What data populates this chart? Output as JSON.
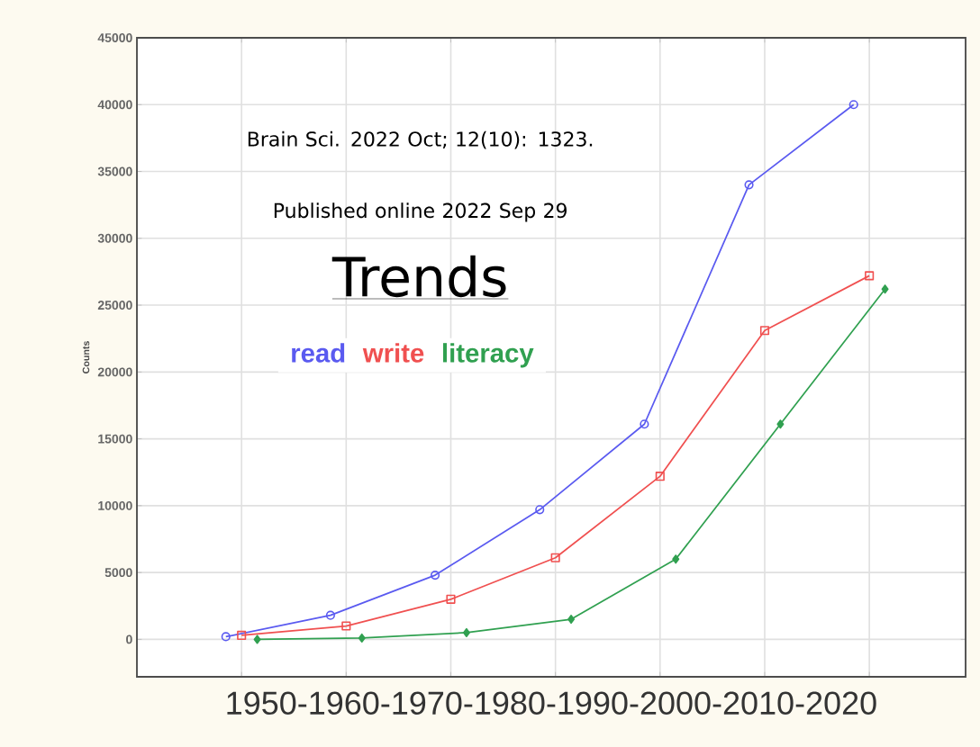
{
  "chart_data": {
    "type": "line",
    "title": "Trends",
    "xlabel": "1950-1960-1970-1980-1990-2000-2010-2020",
    "ylabel": "Counts",
    "annotations": [
      "Brain Sci. 2022 Oct; 12(10): 1323.",
      "Published online 2022 Sep 29"
    ],
    "categories": [
      null,
      null,
      null,
      null,
      null,
      null,
      null
    ],
    "series": [
      {
        "name": "read",
        "color": "#5a5af0",
        "marker": "circle",
        "values": [
          200,
          1800,
          4800,
          9700,
          16100,
          34000,
          40000
        ]
      },
      {
        "name": "write",
        "color": "#f05050",
        "marker": "square",
        "values": [
          300,
          1000,
          3000,
          6100,
          12200,
          23100,
          27200
        ]
      },
      {
        "name": "literacy",
        "color": "#30a050",
        "marker": "diamond",
        "values": [
          0,
          100,
          500,
          1500,
          6000,
          16100,
          26200
        ]
      }
    ],
    "ylim": [
      -2800,
      45000
    ],
    "yticks": [
      0,
      5000,
      10000,
      15000,
      20000,
      25000,
      30000,
      35000,
      40000,
      45000
    ],
    "grid": true,
    "legend": "left",
    "tick_labels": "y",
    "line_style": "solid"
  }
}
